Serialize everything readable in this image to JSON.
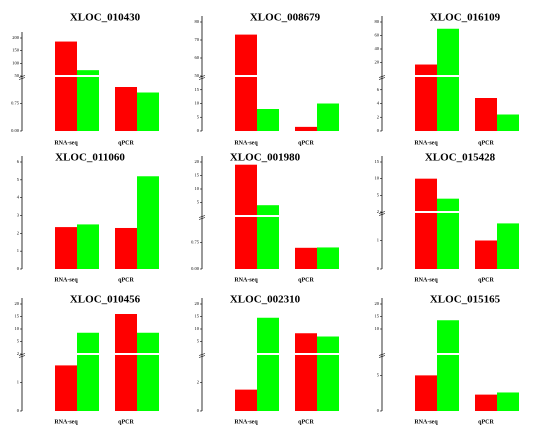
{
  "chart_data": [
    {
      "type": "bar",
      "title": "XLOC_010430",
      "categories": [
        "RNA-seq",
        "qPCR"
      ],
      "yticks": [
        "0.00",
        "0.75",
        "50",
        "100",
        "150",
        "200"
      ],
      "series": [
        {
          "color": "#ff0000",
          "values": [
            186,
            1.2
          ]
        },
        {
          "color": "#00ff00",
          "values": [
            73,
            1.05
          ]
        }
      ]
    },
    {
      "type": "bar",
      "title": "XLOC_008679",
      "categories": [
        "RNA-seq",
        "qPCR"
      ],
      "yticks": [
        "0",
        "5",
        "10",
        "15",
        "50",
        "60",
        "70",
        "80"
      ],
      "series": [
        {
          "color": "#ff0000",
          "values": [
            73,
            1.5
          ]
        },
        {
          "color": "#00ff00",
          "values": [
            8,
            10
          ]
        }
      ]
    },
    {
      "type": "bar",
      "title": "XLOC_016109",
      "categories": [
        "RNA-seq",
        "qPCR"
      ],
      "yticks": [
        "0",
        "2",
        "4",
        "6",
        "20",
        "40",
        "60",
        "80"
      ],
      "series": [
        {
          "color": "#ff0000",
          "values": [
            17,
            4.8
          ]
        },
        {
          "color": "#00ff00",
          "values": [
            70,
            2.4
          ]
        }
      ]
    },
    {
      "type": "bar",
      "title": "XLOC_011060",
      "categories": [
        "RNA-seq",
        "qPCR"
      ],
      "yticks": [
        "0",
        "1",
        "2",
        "3",
        "4",
        "5",
        "6"
      ],
      "series": [
        {
          "color": "#ff0000",
          "values": [
            2.35,
            2.3
          ]
        },
        {
          "color": "#00ff00",
          "values": [
            2.5,
            5.2
          ]
        }
      ]
    },
    {
      "type": "bar",
      "title": "XLOC_001980",
      "categories": [
        "RNA-seq",
        "qPCR"
      ],
      "yticks": [
        "0.00",
        "0.75",
        "5",
        "10",
        "15",
        "20"
      ],
      "series": [
        {
          "color": "#ff0000",
          "values": [
            19,
            0.6
          ]
        },
        {
          "color": "#00ff00",
          "values": [
            4,
            0.61
          ]
        }
      ]
    },
    {
      "type": "bar",
      "title": "XLOC_015428",
      "categories": [
        "RNA-seq",
        "qPCR"
      ],
      "yticks": [
        "0",
        "1",
        "2",
        "5",
        "10",
        "15"
      ],
      "series": [
        {
          "color": "#ff0000",
          "values": [
            10,
            1
          ]
        },
        {
          "color": "#00ff00",
          "values": [
            4,
            1.6
          ]
        }
      ]
    },
    {
      "type": "bar",
      "title": "XLOC_010456",
      "categories": [
        "RNA-seq",
        "qPCR"
      ],
      "yticks": [
        "0",
        "1",
        "2",
        "5",
        "10",
        "15",
        "20"
      ],
      "series": [
        {
          "color": "#ff0000",
          "values": [
            1.6,
            16
          ]
        },
        {
          "color": "#00ff00",
          "values": [
            8.5,
            8.5
          ]
        }
      ]
    },
    {
      "type": "bar",
      "title": "XLOC_002310",
      "categories": [
        "RNA-seq",
        "qPCR"
      ],
      "yticks": [
        "0",
        "2",
        "5",
        "10",
        "15",
        "20"
      ],
      "series": [
        {
          "color": "#ff0000",
          "values": [
            1.5,
            8.3
          ]
        },
        {
          "color": "#00ff00",
          "values": [
            14.5,
            7
          ]
        }
      ]
    },
    {
      "type": "bar",
      "title": "XLOC_015165",
      "categories": [
        "RNA-seq",
        "qPCR"
      ],
      "yticks": [
        "0",
        "5",
        "10",
        "15",
        "20"
      ],
      "series": [
        {
          "color": "#ff0000",
          "values": [
            5,
            2.3
          ]
        },
        {
          "color": "#00ff00",
          "values": [
            13.5,
            2.6
          ]
        }
      ]
    }
  ]
}
